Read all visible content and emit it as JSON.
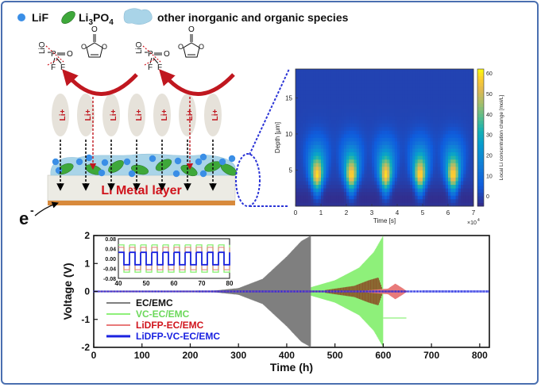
{
  "legend": {
    "lif": "LiF",
    "li3po4_main": "Li",
    "li3po4_sub1": "3",
    "li3po4_mid": "PO",
    "li3po4_sub2": "4",
    "other": "other inorganic and organic species"
  },
  "schematic": {
    "ion_label": "Li",
    "ion_charge": "+",
    "metal_layer": "Li Metal layer",
    "electron": "e",
    "electron_sup": "-",
    "lidfp_li": "LiO",
    "lidfp_p": "P",
    "lidfp_o": "O",
    "lidfp_f": "F",
    "vc_o": "O"
  },
  "colors": {
    "lif": "#3a8ee6",
    "li3po4": "#3ea83a",
    "sei": "#a9d4e8",
    "metal": "#d88a3c",
    "arrow_red": "#c0171f",
    "ion_fill": "#e6e2da"
  },
  "chart_data": [
    {
      "type": "heatmap",
      "xlabel": "Time [s]",
      "ylabel": "Depth [μm]",
      "colorbar_label": "Local Li concentration change [mol/L]",
      "x_multiplier": "×10",
      "x_multiplier_exp": "4",
      "xlim": [
        0,
        7
      ],
      "ylim": [
        0,
        19
      ],
      "x_ticks": [
        0,
        1,
        2,
        3,
        4,
        5,
        6,
        7
      ],
      "y_ticks": [
        5,
        10,
        15
      ],
      "colorbar_ticks": [
        0,
        10,
        20,
        30,
        40,
        50,
        60
      ],
      "colorbar_range": [
        -5,
        62
      ],
      "pulse_centers": [
        0.85,
        2.2,
        3.55,
        4.9,
        6.2
      ],
      "peak_depth": 4.5
    },
    {
      "type": "line",
      "xlabel": "Time (h)",
      "ylabel": "Voltage (V)",
      "xlim": [
        0,
        820
      ],
      "ylim": [
        -2,
        2
      ],
      "x_ticks": [
        0,
        100,
        200,
        300,
        400,
        500,
        600,
        700,
        800
      ],
      "y_ticks": [
        -2,
        -1,
        0,
        1,
        2
      ],
      "series": [
        {
          "name": "EC/EMC",
          "color": "#7f7f7f",
          "envelope": [
            [
              0,
              0.02
            ],
            [
              250,
              0.03
            ],
            [
              300,
              0.12
            ],
            [
              350,
              0.45
            ],
            [
              400,
              1.25
            ],
            [
              430,
              1.8
            ],
            [
              450,
              2.0
            ]
          ]
        },
        {
          "name": "VC-EC/EMC",
          "color": "#8ef07a",
          "envelope": [
            [
              0,
              0.02
            ],
            [
              400,
              0.03
            ],
            [
              450,
              0.15
            ],
            [
              500,
              0.4
            ],
            [
              550,
              0.85
            ],
            [
              580,
              1.4
            ],
            [
              600,
              2.0
            ]
          ],
          "tail": [
            [
              600,
              -0.95
            ],
            [
              648,
              -0.95
            ]
          ]
        },
        {
          "name": "LiDFP-EC/EMC",
          "color": "#e87a7a",
          "envelope": [
            [
              0,
              0.02
            ],
            [
              560,
              0.03
            ],
            [
              610,
              0.1
            ],
            [
              625,
              0.28
            ],
            [
              640,
              0.12
            ],
            [
              650,
              0.0
            ]
          ]
        },
        {
          "name": "LiDFP-VC-EC/EMC",
          "color": "#1a22e0",
          "envelope": [
            [
              0,
              0.03
            ],
            [
              820,
              0.04
            ]
          ]
        }
      ],
      "overlay_brown": {
        "color": "#8b5a2b",
        "envelope": [
          [
            480,
            0.05
          ],
          [
            540,
            0.2
          ],
          [
            570,
            0.4
          ],
          [
            590,
            0.5
          ],
          [
            600,
            0.0
          ]
        ]
      },
      "inset": {
        "xlim": [
          40,
          80
        ],
        "ylim": [
          -0.08,
          0.08
        ],
        "x_ticks": [
          40,
          50,
          60,
          70,
          80
        ],
        "y_ticks": [
          0.08,
          0.04,
          0.0,
          -0.04,
          -0.08
        ],
        "y_tick_labels": [
          "0.08",
          "0.04",
          "0.00",
          "-0.04",
          "-0.08"
        ],
        "period_h": 4,
        "green_amplitude": 0.055,
        "blue_amplitude": 0.025
      }
    }
  ]
}
